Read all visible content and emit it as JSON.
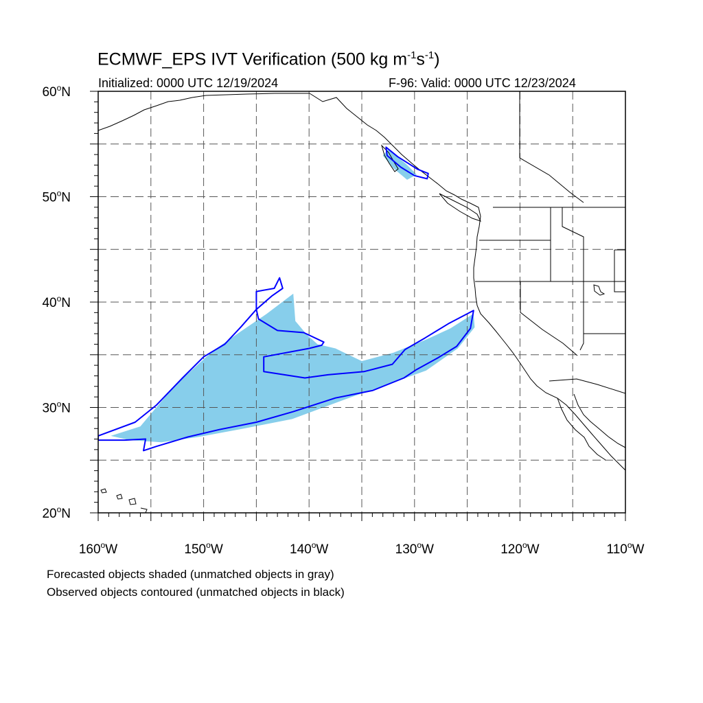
{
  "header": {
    "title_prefix": "ECMWF_EPS IVT Verification (500 kg m",
    "title_exp1": "-1",
    "title_mid": "s",
    "title_exp2": "-1",
    "title_suffix": ")",
    "initialized": "Initialized: 0000 UTC 12/19/2024",
    "valid": "F-96: Valid: 0000 UTC 12/23/2024"
  },
  "legend": {
    "line1": "Forecasted objects shaded (unmatched objects in gray)",
    "line2": "Observed objects contoured (unmatched objects in black)"
  },
  "map": {
    "lon_range": [
      -160,
      -110
    ],
    "lat_range": [
      20,
      60
    ],
    "lat_labels": [
      {
        "lat": 60,
        "text": "60",
        "sym": "o",
        "hem": "N"
      },
      {
        "lat": 50,
        "text": "50",
        "sym": "o",
        "hem": "N"
      },
      {
        "lat": 40,
        "text": "40",
        "sym": "o",
        "hem": "N"
      },
      {
        "lat": 30,
        "text": "30",
        "sym": "o",
        "hem": "N"
      },
      {
        "lat": 20,
        "text": "20",
        "sym": "o",
        "hem": "N"
      }
    ],
    "lon_labels": [
      {
        "lon": -160,
        "text": "160",
        "sym": "o",
        "hem": "W"
      },
      {
        "lon": -150,
        "text": "150",
        "sym": "o",
        "hem": "W"
      },
      {
        "lon": -140,
        "text": "140",
        "sym": "o",
        "hem": "W"
      },
      {
        "lon": -130,
        "text": "130",
        "sym": "o",
        "hem": "W"
      },
      {
        "lon": -120,
        "text": "120",
        "sym": "o",
        "hem": "W"
      },
      {
        "lon": -110,
        "text": "110",
        "sym": "o",
        "hem": "W"
      }
    ],
    "colors": {
      "forecast_fill": "#87ceeb",
      "observed_contour": "#0000ff",
      "grid": "#555555",
      "coast": "#000000"
    },
    "forecast_objects": [
      [
        [
          -158.8,
          27.3
        ],
        [
          -156,
          28.2
        ],
        [
          -152.8,
          32.0
        ],
        [
          -149.2,
          35.3
        ],
        [
          -146.5,
          37.2
        ],
        [
          -144.0,
          38.9
        ],
        [
          -141.5,
          40.8
        ],
        [
          -141.3,
          38.2
        ],
        [
          -140.2,
          36.9
        ],
        [
          -139.2,
          36.0
        ],
        [
          -137.5,
          35.6
        ],
        [
          -135,
          34.4
        ],
        [
          -132,
          35.2
        ],
        [
          -129,
          36.4
        ],
        [
          -126.6,
          37.5
        ],
        [
          -124.4,
          38.9
        ],
        [
          -124.3,
          37.6
        ],
        [
          -125.9,
          35.6
        ],
        [
          -128.9,
          33.5
        ],
        [
          -131.4,
          32.6
        ],
        [
          -136.5,
          30.8
        ],
        [
          -141.6,
          28.9
        ],
        [
          -146.2,
          28.0
        ],
        [
          -150.5,
          27.2
        ],
        [
          -154.0,
          26.7
        ],
        [
          -157.0,
          26.9
        ]
      ],
      [
        [
          -132.5,
          54.5
        ],
        [
          -130.8,
          53.1
        ],
        [
          -129.8,
          52.1
        ],
        [
          -130.7,
          51.6
        ],
        [
          -132.0,
          52.7
        ],
        [
          -133.0,
          53.9
        ]
      ]
    ],
    "observed_objects": [
      [
        [
          -160,
          27.3
        ],
        [
          -156.5,
          28.6
        ],
        [
          -154.5,
          30.2
        ],
        [
          -152,
          32.8
        ],
        [
          -150,
          34.8
        ],
        [
          -148,
          36.0
        ],
        [
          -146.5,
          37.6
        ],
        [
          -145.0,
          39.3
        ],
        [
          -143.5,
          40.6
        ],
        [
          -142.5,
          41.3
        ],
        [
          -142.8,
          42.3
        ],
        [
          -143.3,
          41.3
        ],
        [
          -145.0,
          41.0
        ],
        [
          -145.0,
          39.3
        ],
        [
          -144.8,
          38.4
        ],
        [
          -143,
          37.3
        ],
        [
          -140.5,
          37.1
        ],
        [
          -138.6,
          36.2
        ],
        [
          -138.8,
          35.9
        ],
        [
          -140.0,
          35.6
        ],
        [
          -144.3,
          34.8
        ],
        [
          -144.3,
          33.4
        ],
        [
          -140.4,
          32.8
        ],
        [
          -138.2,
          33.1
        ],
        [
          -134.8,
          33.4
        ],
        [
          -132.1,
          34.1
        ],
        [
          -130.9,
          35.5
        ],
        [
          -129.0,
          36.6
        ],
        [
          -126.7,
          38.0
        ],
        [
          -124.4,
          39.2
        ],
        [
          -124.7,
          37.5
        ],
        [
          -126.0,
          35.8
        ],
        [
          -127.8,
          34.7
        ],
        [
          -129.8,
          33.6
        ],
        [
          -131.0,
          32.8
        ],
        [
          -134,
          31.6
        ],
        [
          -137.5,
          30.9
        ],
        [
          -141.5,
          29.6
        ],
        [
          -145.0,
          28.6
        ],
        [
          -148.5,
          27.9
        ],
        [
          -151.5,
          27.2
        ],
        [
          -154.5,
          26.3
        ],
        [
          -155.7,
          25.9
        ],
        [
          -155.5,
          27.0
        ],
        [
          -157.5,
          26.9
        ],
        [
          -160,
          26.9
        ]
      ],
      [
        [
          -132.7,
          54.7
        ],
        [
          -131.6,
          53.8
        ],
        [
          -129.7,
          52.6
        ],
        [
          -128.7,
          52.2
        ],
        [
          -128.8,
          51.7
        ],
        [
          -130.0,
          52.0
        ],
        [
          -131.3,
          52.8
        ],
        [
          -132.6,
          53.9
        ]
      ]
    ]
  }
}
